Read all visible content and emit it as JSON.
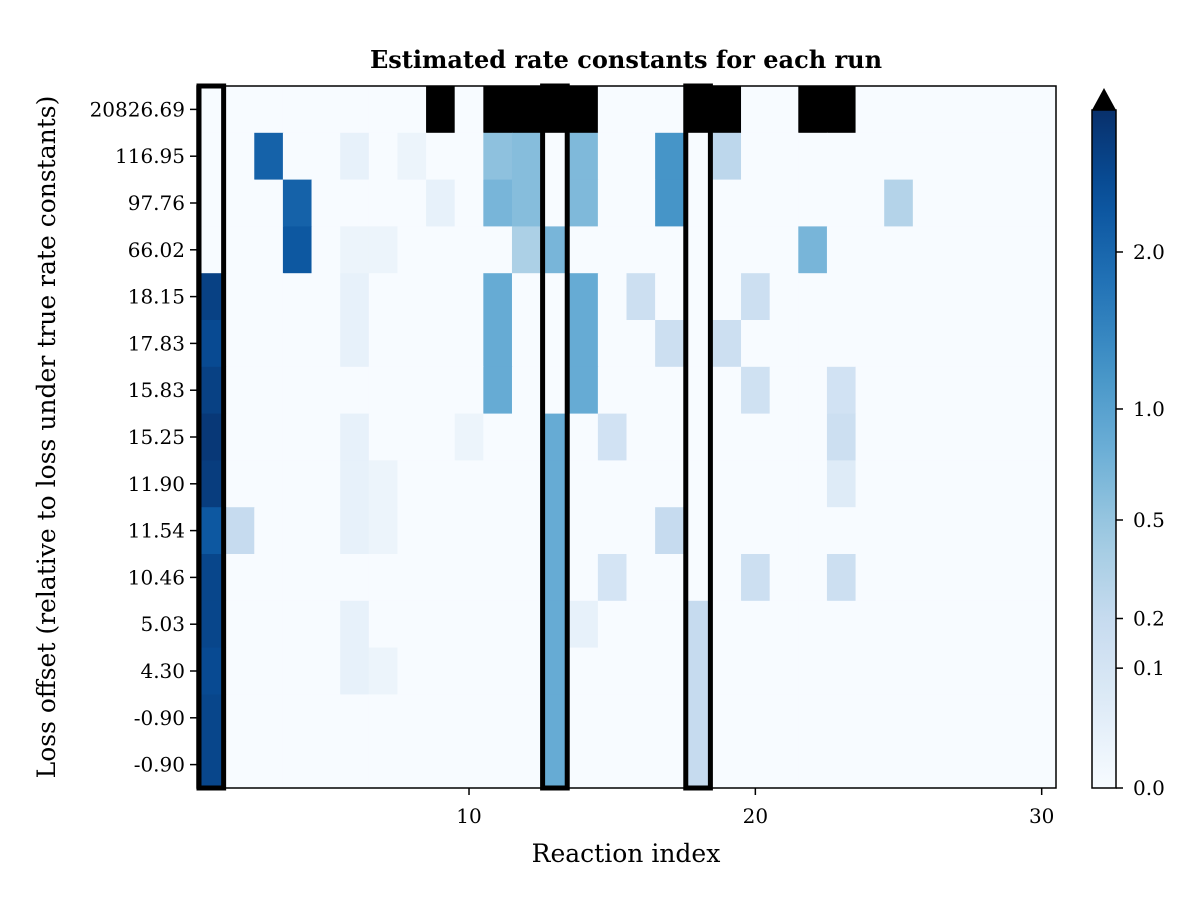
{
  "chart_data": {
    "type": "heatmap",
    "title": "Estimated rate constants for each run",
    "xlabel": "Reaction index",
    "ylabel": "Loss offset (relative to loss under true rate constants)",
    "x_ticks": [
      10,
      20,
      30
    ],
    "x_range": [
      1,
      30
    ],
    "row_labels": [
      "20826.69",
      "116.95",
      "97.76",
      "66.02",
      "18.15",
      "17.83",
      "15.83",
      "15.25",
      "11.90",
      "11.54",
      "10.46",
      "5.03",
      "4.30",
      "-0.90",
      "-0.90"
    ],
    "colormap": "Blues",
    "colorbar": {
      "ticks": [
        0.0,
        0.1,
        0.2,
        0.5,
        1.0,
        2.0
      ],
      "tick_labels": [
        "0.0",
        "0.1",
        "0.2",
        "0.5",
        "1.0",
        "2.0"
      ],
      "extend": "max",
      "over_color": "#000000"
    },
    "highlighted_columns": [
      1,
      13,
      18
    ],
    "values": [
      [
        0.0,
        0.0,
        0.0,
        0.0,
        0.0,
        0.0,
        0.0,
        0.0,
        "over",
        0.0,
        "over",
        "over",
        "over",
        "over",
        0.0,
        0.0,
        0.0,
        "over",
        "over",
        0.0,
        0.0,
        "over",
        "over",
        0.0,
        0.0,
        0.0,
        0.0,
        0.0,
        0.0,
        0.0
      ],
      [
        0.0,
        0.0,
        2.1,
        0.0,
        0.0,
        0.02,
        0.0,
        0.01,
        0.0,
        0.0,
        0.55,
        0.6,
        0.0,
        0.65,
        0.0,
        0.0,
        1.2,
        0.0,
        0.25,
        0.0,
        0.0,
        0.0,
        0.0,
        0.0,
        0.0,
        0.0,
        0.0,
        0.0,
        0.0,
        0.0
      ],
      [
        0.0,
        0.0,
        0.0,
        2.1,
        0.0,
        0.0,
        0.0,
        0.0,
        0.02,
        0.0,
        0.7,
        0.6,
        0.0,
        0.65,
        0.0,
        0.0,
        1.2,
        0.0,
        0.0,
        0.0,
        0.0,
        0.0,
        0.0,
        0.0,
        0.3,
        0.0,
        0.0,
        0.0,
        0.0,
        0.0
      ],
      [
        0.0,
        0.0,
        0.0,
        2.3,
        0.0,
        0.01,
        0.01,
        0.0,
        0.0,
        0.0,
        0.0,
        0.35,
        0.7,
        0.0,
        0.0,
        0.0,
        0.0,
        0.0,
        0.0,
        0.0,
        0.0,
        0.7,
        0.0,
        0.0,
        0.0,
        0.0,
        0.0,
        0.0,
        0.0,
        0.0
      ],
      [
        2.8,
        0.0,
        0.0,
        0.0,
        0.0,
        0.02,
        0.0,
        0.0,
        0.0,
        0.0,
        0.85,
        0.0,
        0.0,
        0.85,
        0.0,
        0.15,
        0.0,
        0.0,
        0.0,
        0.15,
        0.0,
        0.0,
        0.0,
        0.0,
        0.0,
        0.0,
        0.0,
        0.0,
        0.0,
        0.0
      ],
      [
        2.6,
        0.0,
        0.0,
        0.0,
        0.0,
        0.02,
        0.0,
        0.0,
        0.0,
        0.0,
        0.85,
        0.0,
        0.0,
        0.85,
        0.0,
        0.0,
        0.15,
        0.0,
        0.15,
        0.0,
        0.0,
        0.0,
        0.0,
        0.0,
        0.0,
        0.0,
        0.0,
        0.0,
        0.0,
        0.0
      ],
      [
        2.8,
        0.0,
        0.0,
        0.0,
        0.0,
        0.0,
        0.0,
        0.0,
        0.0,
        0.0,
        0.85,
        0.0,
        0.0,
        0.85,
        0.0,
        0.0,
        0.0,
        0.0,
        0.0,
        0.13,
        0.0,
        0.0,
        0.12,
        0.0,
        0.0,
        0.0,
        0.0,
        0.0,
        0.0,
        0.0
      ],
      [
        3.0,
        0.0,
        0.0,
        0.0,
        0.0,
        0.02,
        0.0,
        0.0,
        0.0,
        0.01,
        0.0,
        0.0,
        0.85,
        0.0,
        0.12,
        0.0,
        0.0,
        0.0,
        0.0,
        0.0,
        0.0,
        0.0,
        0.15,
        0.0,
        0.0,
        0.0,
        0.0,
        0.0,
        0.0,
        0.0
      ],
      [
        2.9,
        0.0,
        0.0,
        0.0,
        0.0,
        0.02,
        0.01,
        0.0,
        0.0,
        0.0,
        0.0,
        0.0,
        0.85,
        0.0,
        0.0,
        0.0,
        0.0,
        0.0,
        0.0,
        0.0,
        0.0,
        0.0,
        0.05,
        0.0,
        0.0,
        0.0,
        0.0,
        0.0,
        0.0,
        0.0
      ],
      [
        2.3,
        0.2,
        0.0,
        0.0,
        0.0,
        0.02,
        0.01,
        0.0,
        0.0,
        0.0,
        0.0,
        0.0,
        0.85,
        0.0,
        0.0,
        0.0,
        0.2,
        0.0,
        0.0,
        0.0,
        0.0,
        0.0,
        0.0,
        0.0,
        0.0,
        0.0,
        0.0,
        0.0,
        0.0,
        0.0
      ],
      [
        2.7,
        0.0,
        0.0,
        0.0,
        0.0,
        0.0,
        0.0,
        0.0,
        0.0,
        0.0,
        0.0,
        0.0,
        0.85,
        0.0,
        0.1,
        0.0,
        0.0,
        0.0,
        0.0,
        0.15,
        0.0,
        0.0,
        0.15,
        0.0,
        0.0,
        0.0,
        0.0,
        0.0,
        0.0,
        0.0
      ],
      [
        2.7,
        0.0,
        0.0,
        0.0,
        0.0,
        0.02,
        0.0,
        0.0,
        0.0,
        0.0,
        0.0,
        0.0,
        0.85,
        0.02,
        0.0,
        0.0,
        0.0,
        0.2,
        0.0,
        0.0,
        0.0,
        0.0,
        0.0,
        0.0,
        0.0,
        0.0,
        0.0,
        0.0,
        0.0,
        0.0
      ],
      [
        2.6,
        0.0,
        0.0,
        0.0,
        0.0,
        0.02,
        0.01,
        0.0,
        0.0,
        0.0,
        0.0,
        0.0,
        0.85,
        0.0,
        0.0,
        0.0,
        0.0,
        0.2,
        0.0,
        0.0,
        0.0,
        0.0,
        0.0,
        0.0,
        0.0,
        0.0,
        0.0,
        0.0,
        0.0,
        0.0
      ],
      [
        2.7,
        0.0,
        0.0,
        0.0,
        0.0,
        0.0,
        0.0,
        0.0,
        0.0,
        0.0,
        0.0,
        0.0,
        0.85,
        0.0,
        0.0,
        0.0,
        0.0,
        0.2,
        0.0,
        0.0,
        0.0,
        0.0,
        0.0,
        0.0,
        0.0,
        0.0,
        0.0,
        0.0,
        0.0,
        0.0
      ],
      [
        2.7,
        0.0,
        0.0,
        0.0,
        0.0,
        0.0,
        0.0,
        0.0,
        0.0,
        0.0,
        0.0,
        0.0,
        0.85,
        0.0,
        0.0,
        0.0,
        0.0,
        0.2,
        0.0,
        0.0,
        0.0,
        0.0,
        0.0,
        0.0,
        0.0,
        0.0,
        0.0,
        0.0,
        0.0,
        0.0
      ]
    ]
  }
}
